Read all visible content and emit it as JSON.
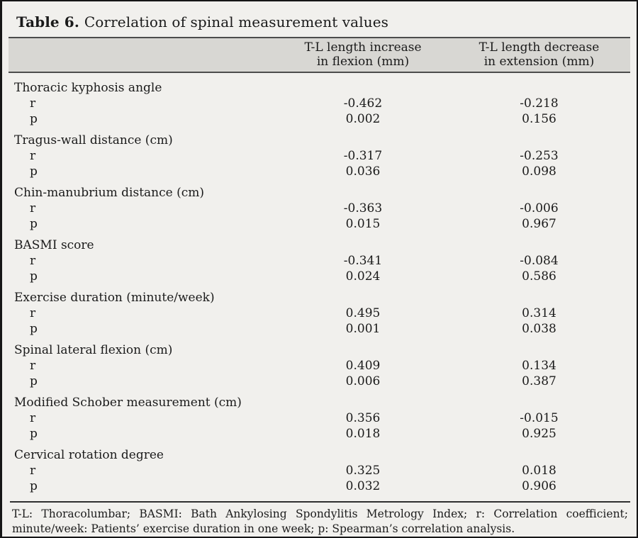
{
  "title": {
    "prefix": "Table 6.",
    "text": "Correlation of spinal measurement values"
  },
  "header": {
    "col1": {
      "line1": "T-L length increase",
      "line2": "in flexion (mm)"
    },
    "col2": {
      "line1": "T-L length decrease",
      "line2": "in extension (mm)"
    }
  },
  "stat_labels": {
    "r": "r",
    "p": "p"
  },
  "rows": [
    {
      "measure": "Thoracic kyphosis angle",
      "r_flexion": "-0.462",
      "r_extension": "-0.218",
      "p_flexion": "0.002",
      "p_extension": "0.156"
    },
    {
      "measure": "Tragus-wall distance (cm)",
      "r_flexion": "-0.317",
      "r_extension": "-0.253",
      "p_flexion": "0.036",
      "p_extension": "0.098"
    },
    {
      "measure": "Chin-manubrium distance (cm)",
      "r_flexion": "-0.363",
      "r_extension": "-0.006",
      "p_flexion": "0.015",
      "p_extension": "0.967"
    },
    {
      "measure": "BASMI score",
      "r_flexion": "-0.341",
      "r_extension": "-0.084",
      "p_flexion": "0.024",
      "p_extension": "0.586"
    },
    {
      "measure": "Exercise duration (minute/week)",
      "r_flexion": "0.495",
      "r_extension": "0.314",
      "p_flexion": "0.001",
      "p_extension": "0.038"
    },
    {
      "measure": "Spinal lateral flexion (cm)",
      "r_flexion": "0.409",
      "r_extension": "0.134",
      "p_flexion": "0.006",
      "p_extension": "0.387"
    },
    {
      "measure": "Modified Schober measurement (cm)",
      "r_flexion": "0.356",
      "r_extension": "-0.015",
      "p_flexion": "0.018",
      "p_extension": "0.925"
    },
    {
      "measure": "Cervical rotation degree",
      "r_flexion": "0.325",
      "r_extension": "0.018",
      "p_flexion": "0.032",
      "p_extension": "0.906"
    }
  ],
  "footnote": "T-L: Thoracolumbar; BASMI: Bath Ankylosing Spondylitis Metrology Index; r: Correlation coefficient; minute/week: Patients’ exercise duration in one week; p: Spearman’s correlation analysis.",
  "colors": {
    "page_background": "#f1f0ed",
    "header_band": "#d8d7d3",
    "border": "#161616",
    "rule": "#4c4c4c",
    "text": "#1a1a1a"
  }
}
